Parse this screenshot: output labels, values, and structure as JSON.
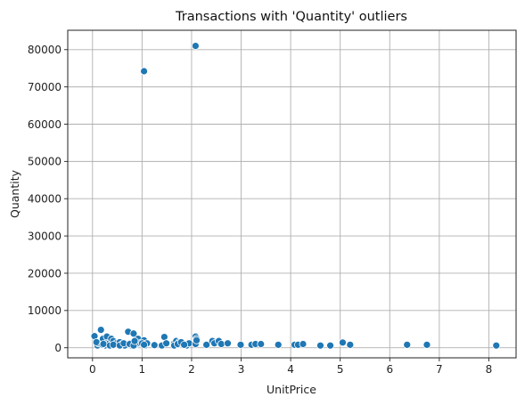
{
  "chart_data": {
    "type": "scatter",
    "title": "Transactions with 'Quantity' outliers",
    "xlabel": "UnitPrice",
    "ylabel": "Quantity",
    "xlim": [
      -0.5,
      8.55
    ],
    "ylim": [
      -2700,
      85200
    ],
    "xticks": [
      0,
      1,
      2,
      3,
      4,
      5,
      6,
      7,
      8
    ],
    "xtick_labels": [
      "0",
      "1",
      "2",
      "3",
      "4",
      "5",
      "6",
      "7",
      "8"
    ],
    "yticks": [
      0,
      10000,
      20000,
      30000,
      40000,
      50000,
      60000,
      70000,
      80000
    ],
    "ytick_labels": [
      "0",
      "10000",
      "20000",
      "30000",
      "40000",
      "50000",
      "60000",
      "70000",
      "80000"
    ],
    "grid": true,
    "color": "#1f77b4",
    "x": [
      1.04,
      2.08,
      0.04,
      0.1,
      0.12,
      0.17,
      0.21,
      0.25,
      0.29,
      0.29,
      0.34,
      0.38,
      0.42,
      0.42,
      0.48,
      0.55,
      0.55,
      0.6,
      0.65,
      0.72,
      0.75,
      0.79,
      0.83,
      0.85,
      0.85,
      0.92,
      0.96,
      1.04,
      1.06,
      1.1,
      0.08,
      0.2,
      0.22,
      0.35,
      0.42,
      0.55,
      0.63,
      0.75,
      0.83,
      0.85,
      1.0,
      1.04,
      1.25,
      1.4,
      1.45,
      1.49,
      1.65,
      1.69,
      1.72,
      1.75,
      1.79,
      1.85,
      1.9,
      1.95,
      2.08,
      2.1,
      1.65,
      1.72,
      1.79,
      1.85,
      2.08,
      2.1,
      2.3,
      2.42,
      2.46,
      2.55,
      2.6,
      2.73,
      2.99,
      3.21,
      3.29,
      3.4,
      3.75,
      4.08,
      4.15,
      4.25,
      4.6,
      4.8,
      5.05,
      5.2,
      6.35,
      6.75,
      8.15
    ],
    "y": [
      74215,
      80995,
      3114,
      600,
      1200,
      4800,
      2400,
      600,
      3000,
      1200,
      1200,
      2400,
      600,
      1800,
      1200,
      800,
      1500,
      1000,
      600,
      4300,
      1200,
      600,
      3800,
      1200,
      600,
      2400,
      1200,
      2000,
      600,
      1200,
      1500,
      800,
      1000,
      600,
      800,
      600,
      1200,
      1000,
      600,
      1800,
      1200,
      800,
      700,
      600,
      2900,
      1200,
      1200,
      1800,
      800,
      1500,
      1200,
      1000,
      600,
      1200,
      3000,
      2400,
      600,
      1000,
      1500,
      800,
      1000,
      2000,
      800,
      1800,
      1200,
      1800,
      1000,
      1200,
      800,
      800,
      1000,
      1000,
      800,
      800,
      800,
      1000,
      600,
      600,
      1400,
      800,
      800,
      800,
      600
    ]
  }
}
